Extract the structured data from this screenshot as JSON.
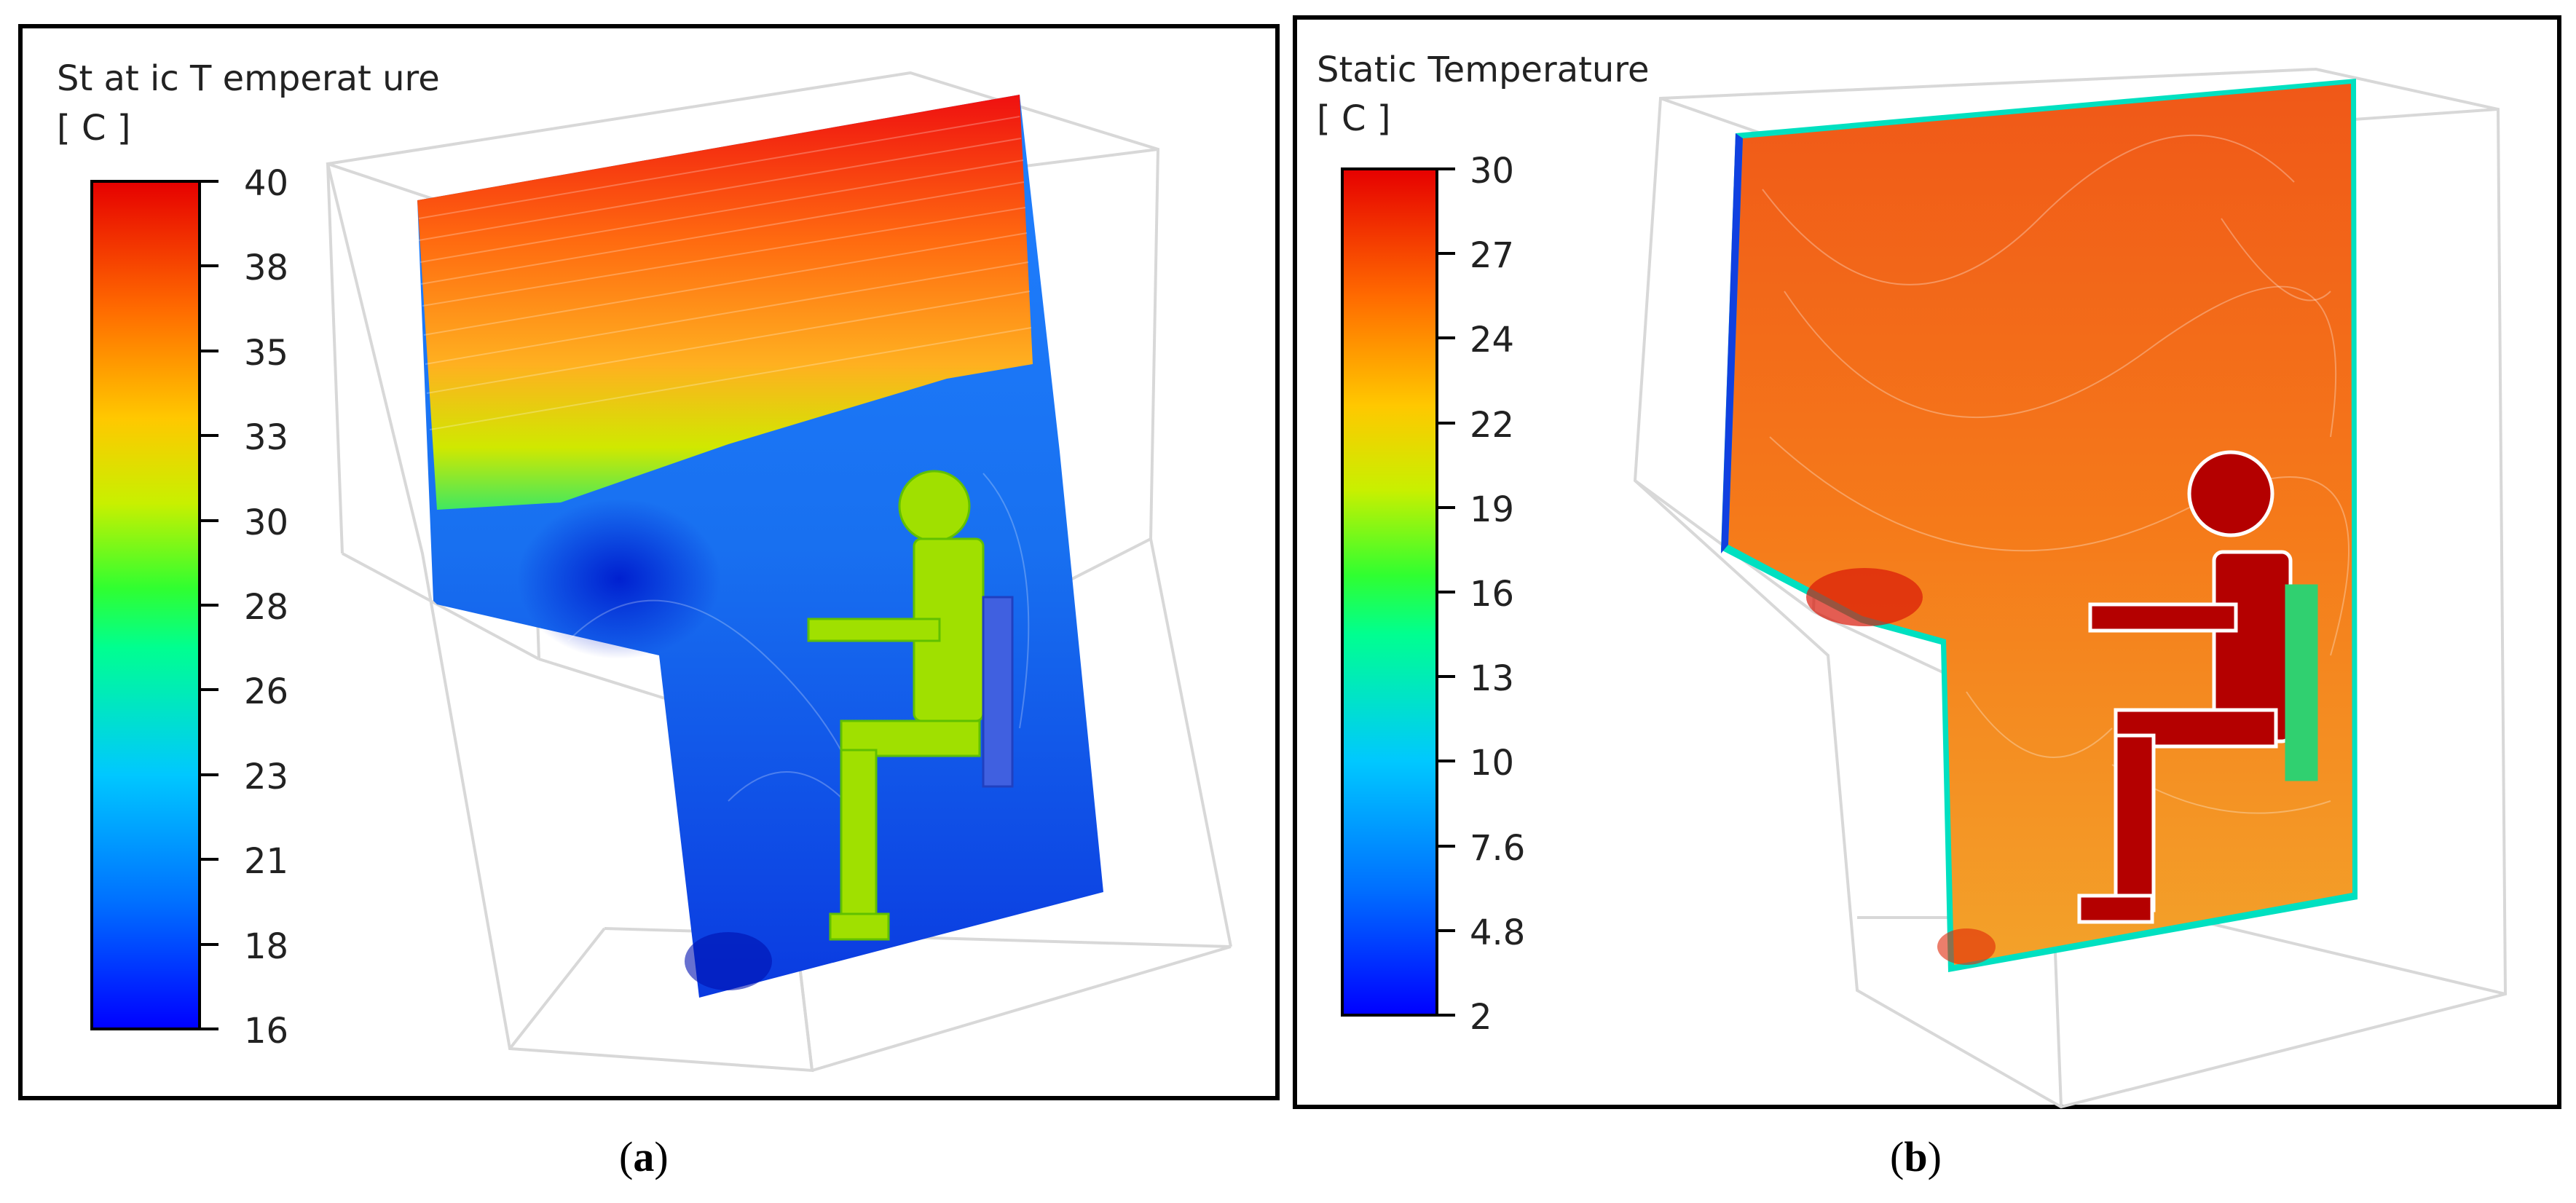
{
  "panels": [
    {
      "id": "a",
      "caption": "a",
      "legend_title": "St at ic T emperat ure",
      "legend_unit": "[ C ]",
      "ticks": [
        "40",
        "38",
        "35",
        "33",
        "30",
        "28",
        "26",
        "23",
        "21",
        "18",
        "16"
      ]
    },
    {
      "id": "b",
      "caption": "b",
      "legend_title": "Static Temperature",
      "legend_unit": "[ C ]",
      "ticks": [
        "30",
        "27",
        "24",
        "22",
        "19",
        "16",
        "13",
        "10",
        "7.6",
        "4.8",
        "2"
      ]
    }
  ],
  "colors": {
    "frame": "#000000",
    "wire": "#d9d9d9",
    "colormap": [
      "#0000ff",
      "#0080ff",
      "#00d0ff",
      "#00ff80",
      "#80ff00",
      "#e0e000",
      "#ffa000",
      "#ff5000",
      "#e00000"
    ]
  }
}
